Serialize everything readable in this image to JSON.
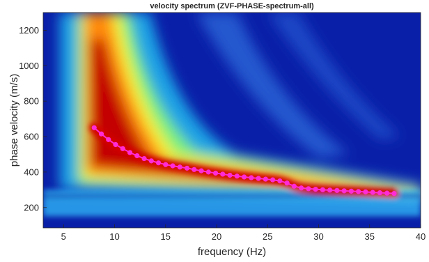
{
  "chart_data": {
    "type": "heatmap",
    "title": "velocity spectrum (ZVF-PHASE-spectrum-all)",
    "xlabel": "frequency (Hz)",
    "ylabel": "phase velocity (m/s)",
    "xlim": [
      3,
      40
    ],
    "ylim": [
      85,
      1300
    ],
    "xticks": [
      5,
      10,
      15,
      20,
      25,
      30,
      35,
      40
    ],
    "yticks": [
      200,
      400,
      600,
      800,
      1000,
      1200
    ],
    "grid": false,
    "colormap": "jet",
    "picked_curve": {
      "color": "#ff2bd6",
      "x": [
        8.0,
        8.7,
        9.4,
        10.1,
        10.8,
        11.5,
        12.2,
        12.9,
        13.6,
        14.3,
        15.0,
        15.7,
        16.4,
        17.1,
        17.8,
        18.5,
        19.2,
        19.9,
        20.6,
        21.3,
        22.0,
        22.7,
        23.4,
        24.1,
        24.8,
        25.5,
        26.2,
        26.9,
        27.6,
        28.3,
        29.0,
        29.7,
        30.4,
        31.1,
        31.8,
        32.5,
        33.2,
        33.9,
        34.6,
        35.3,
        36.0,
        36.7,
        37.4
      ],
      "y": [
        650,
        615,
        583,
        555,
        532,
        510,
        492,
        476,
        463,
        452,
        442,
        435,
        428,
        422,
        414,
        407,
        400,
        394,
        388,
        382,
        377,
        372,
        368,
        364,
        360,
        356,
        350,
        338,
        320,
        310,
        306,
        303,
        300,
        298,
        296,
        294,
        292,
        290,
        288,
        285,
        283,
        281,
        279
      ]
    }
  }
}
